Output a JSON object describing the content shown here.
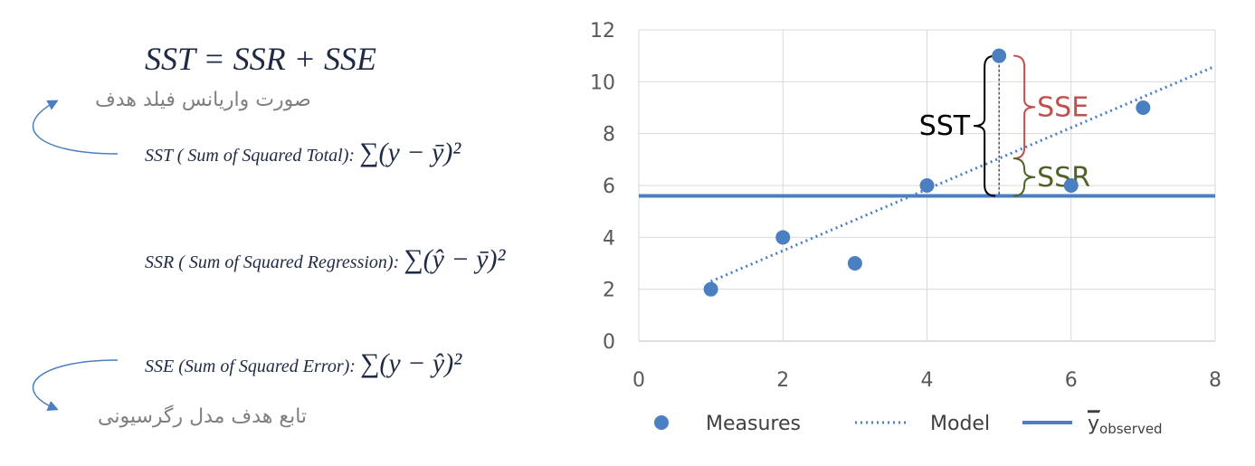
{
  "identity": "SST = SSR + SSE",
  "notes": {
    "top": "صورت واریانس فیلد هدف",
    "bottom": "تابع هدف مدل رگرسیونی"
  },
  "formulas": [
    {
      "label": "SST ( Sum of Squared Total):",
      "expression": "∑(y − ȳ)²"
    },
    {
      "label": "SSR ( Sum of Squared Regression):",
      "expression": "∑(ŷ − ȳ)²"
    },
    {
      "label": "SSE (Sum of Squared Error):",
      "expression": "∑(y − ŷ)²"
    }
  ],
  "chart_data": {
    "type": "scatter",
    "series": [
      {
        "name": "Measures",
        "color": "#4a7fc1",
        "x": [
          1,
          2,
          3,
          4,
          5,
          6,
          7
        ],
        "values": [
          2,
          4,
          3,
          6,
          11,
          6,
          9
        ]
      },
      {
        "name": "Model",
        "color": "#4a7fc1",
        "style": "dotted",
        "x": [
          1,
          8
        ],
        "values": [
          2.3,
          10.6
        ]
      },
      {
        "name": "y",
        "name_subscript": "observed",
        "color": "#4a7fc1",
        "style": "solid",
        "x": [
          0,
          8
        ],
        "values": [
          5.6,
          5.6
        ]
      }
    ],
    "annotations": [
      {
        "text": "SST",
        "color": "#000000"
      },
      {
        "text": "SSE",
        "color": "#c0504d"
      },
      {
        "text": "SSR",
        "color": "#4f6228"
      }
    ],
    "xlim": [
      0,
      8
    ],
    "xticks": [
      0,
      2,
      4,
      6,
      8
    ],
    "ylim": [
      0,
      12
    ],
    "yticks": [
      0,
      2,
      4,
      6,
      8,
      10,
      12
    ],
    "grid": true
  }
}
